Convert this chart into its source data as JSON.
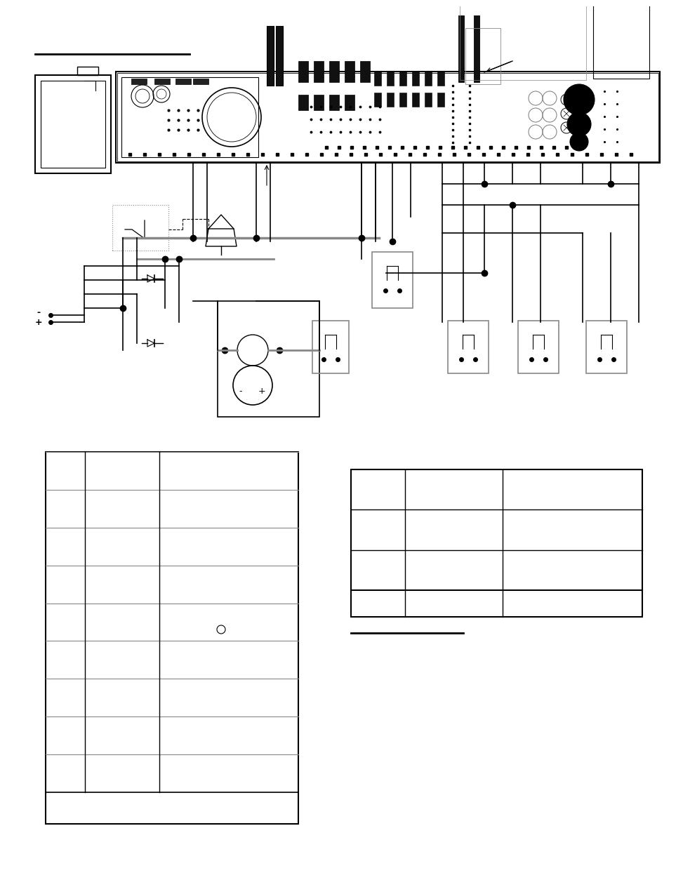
{
  "bg_color": "#ffffff",
  "lc": "#000000",
  "gc": "#888888",
  "page_width": 9.54,
  "page_height": 12.35
}
